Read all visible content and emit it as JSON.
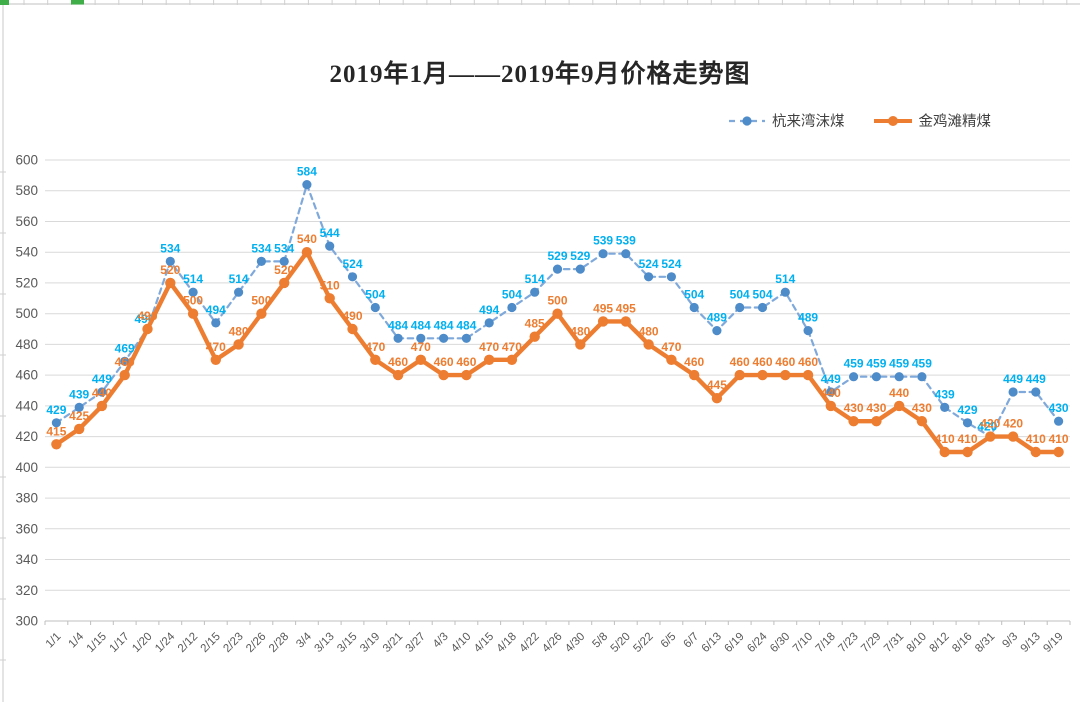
{
  "title": "2019年1月——2019年9月价格走势图",
  "chart_data": {
    "type": "line",
    "title": "2019年1月——2019年9月价格走势图",
    "categories": [
      "1/1",
      "1/4",
      "1/15",
      "1/17",
      "1/20",
      "1/24",
      "2/12",
      "2/15",
      "2/23",
      "2/26",
      "2/28",
      "3/4",
      "3/13",
      "3/15",
      "3/19",
      "3/21",
      "3/27",
      "4/3",
      "4/10",
      "4/15",
      "4/18",
      "4/22",
      "4/26",
      "4/30",
      "5/8",
      "5/20",
      "5/22",
      "6/5",
      "6/7",
      "6/13",
      "6/19",
      "6/24",
      "6/30",
      "7/10",
      "7/18",
      "7/23",
      "7/29",
      "7/31",
      "8/10",
      "8/12",
      "8/16",
      "8/31",
      "9/3",
      "9/13",
      "9/19"
    ],
    "series": [
      {
        "name": "杭来湾沫煤",
        "style": "dashed",
        "color": "#7FA9DB",
        "marker_color": "#4E8BC9",
        "label_color": "#00B0F0",
        "values": [
          429,
          439,
          449,
          469,
          490,
          534,
          514,
          494,
          514,
          534,
          534,
          584,
          544,
          524,
          504,
          484,
          484,
          484,
          484,
          494,
          504,
          514,
          529,
          529,
          539,
          539,
          524,
          524,
          504,
          489,
          504,
          504,
          514,
          489,
          449,
          459,
          459,
          459,
          459,
          439,
          429,
          420,
          449,
          449,
          430
        ]
      },
      {
        "name": "金鸡滩精煤",
        "style": "solid",
        "color": "#ED7D31",
        "marker_color": "#ED7D31",
        "label_color": "#ED7D31",
        "values": [
          415,
          425,
          440,
          460,
          490,
          520,
          500,
          470,
          480,
          500,
          520,
          540,
          510,
          490,
          470,
          460,
          470,
          460,
          460,
          470,
          470,
          485,
          500,
          480,
          495,
          495,
          480,
          470,
          460,
          445,
          460,
          460,
          460,
          460,
          440,
          430,
          430,
          440,
          430,
          410,
          410,
          420,
          420,
          410,
          410
        ]
      }
    ],
    "ylim": [
      300,
      600
    ],
    "yticks": [
      600,
      580,
      560,
      540,
      520,
      500,
      480,
      460,
      440,
      420,
      400,
      380,
      360,
      340,
      320,
      300
    ],
    "grid": true,
    "legend_position": "top-right",
    "axis_text_color": "#595959",
    "grid_color": "#D9D9D9",
    "axis_line_color": "#BFBFBF"
  }
}
